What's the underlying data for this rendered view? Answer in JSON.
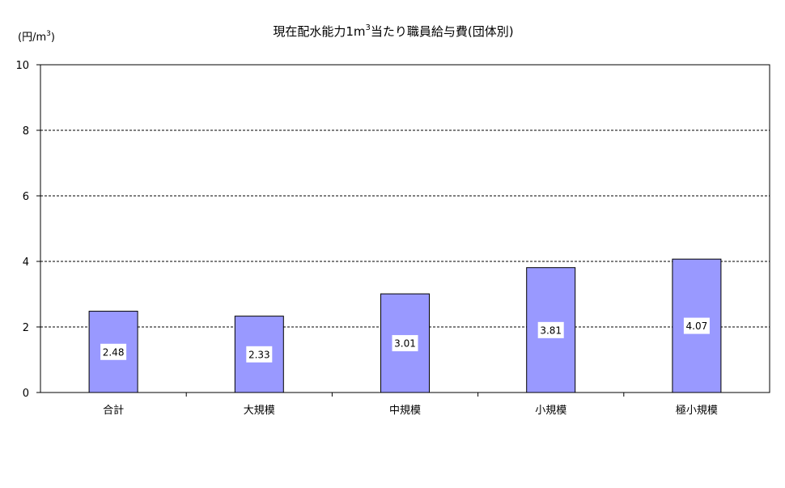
{
  "chart_data": {
    "type": "bar",
    "title": "現在配水能力1m",
    "title_superscript": "3",
    "title_suffix": "当たり職員給与費(団体別)",
    "unit_label": "(円/m",
    "unit_superscript": "3",
    "unit_close": ")",
    "categories": [
      "合計",
      "大規模",
      "中規模",
      "小規模",
      "極小規模"
    ],
    "values": [
      2.48,
      2.33,
      3.01,
      3.81,
      4.07
    ],
    "data_labels": [
      "2.48",
      "2.33",
      "3.01",
      "3.81",
      "4.07"
    ],
    "ylim": [
      0,
      10
    ],
    "yticks": [
      "0",
      "2",
      "4",
      "6",
      "8",
      "10"
    ],
    "grid": "dashed horizontal",
    "legend": "none",
    "bar_color": "#9999ff",
    "bar_stroke": "#000000"
  }
}
